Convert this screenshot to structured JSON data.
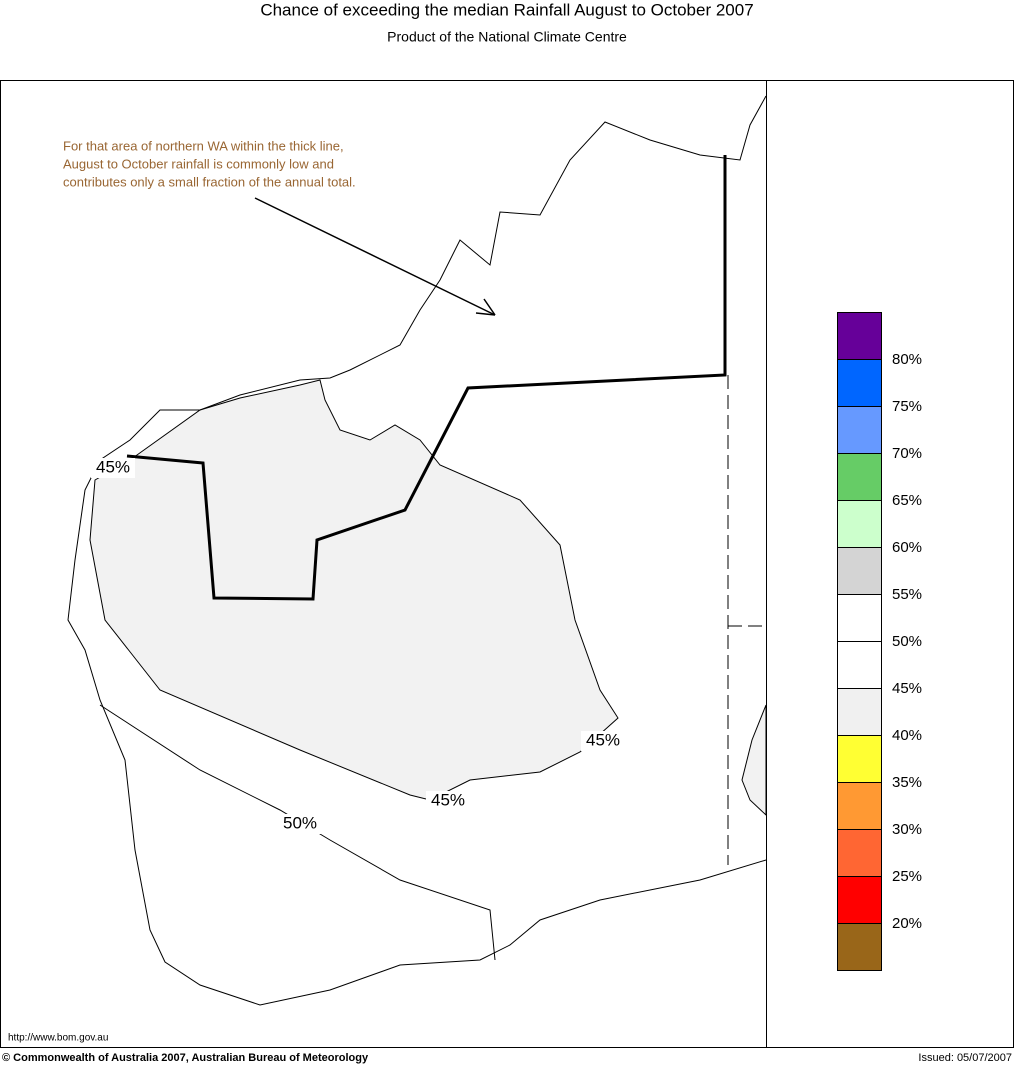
{
  "header": {
    "title": "Chance of exceeding the median Rainfall August to October 2007",
    "subtitle": "Product of the National Climate Centre"
  },
  "annotation": {
    "lines": [
      "For that area of northern WA within the thick line,",
      "August to October rainfall is commonly low and",
      "contributes only a small fraction of the annual total."
    ]
  },
  "contour_labels": [
    "45%",
    "45%",
    "45%",
    "50%"
  ],
  "legend": {
    "colors": [
      "#660099",
      "#0066ff",
      "#6699ff",
      "#66cc66",
      "#ccffcc",
      "#d4d4d4",
      "#ffffff",
      "#ffffff",
      "#f0f0f0",
      "#ffff33",
      "#ff9933",
      "#ff6633",
      "#ff0000",
      "#996619"
    ],
    "labels": [
      "80%",
      "75%",
      "70%",
      "65%",
      "60%",
      "55%",
      "50%",
      "45%",
      "40%",
      "35%",
      "30%",
      "25%",
      "20%"
    ]
  },
  "footer": {
    "url": "http://www.bom.gov.au",
    "copyright": "© Commonwealth of Australia 2007, Australian Bureau of Meteorology",
    "issued": "Issued: 05/07/2007"
  }
}
